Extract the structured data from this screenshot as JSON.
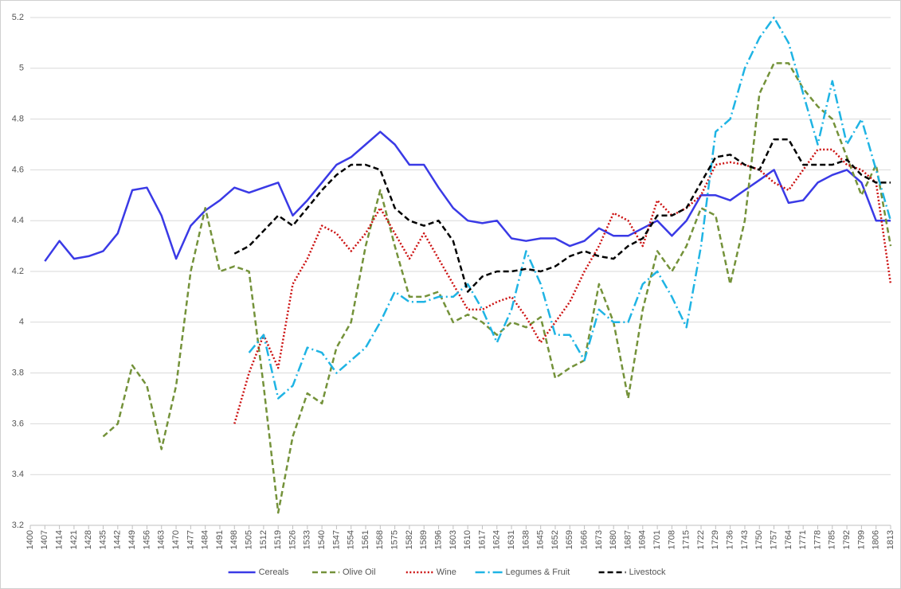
{
  "chart_data": {
    "type": "line",
    "x": [
      1400,
      1407,
      1414,
      1421,
      1428,
      1435,
      1442,
      1449,
      1456,
      1463,
      1470,
      1477,
      1484,
      1491,
      1498,
      1505,
      1512,
      1519,
      1526,
      1533,
      1540,
      1547,
      1554,
      1561,
      1568,
      1575,
      1582,
      1589,
      1596,
      1603,
      1610,
      1617,
      1624,
      1631,
      1638,
      1645,
      1652,
      1659,
      1666,
      1673,
      1680,
      1687,
      1694,
      1701,
      1708,
      1715,
      1722,
      1729,
      1736,
      1743,
      1750,
      1757,
      1764,
      1771,
      1778,
      1785,
      1792,
      1799,
      1806,
      1813
    ],
    "xlim": [
      1400,
      1813
    ],
    "xticks": [
      1400,
      1407,
      1414,
      1421,
      1428,
      1435,
      1442,
      1449,
      1456,
      1463,
      1470,
      1477,
      1484,
      1491,
      1498,
      1505,
      1512,
      1519,
      1526,
      1533,
      1540,
      1547,
      1554,
      1561,
      1568,
      1575,
      1582,
      1589,
      1596,
      1603,
      1610,
      1617,
      1624,
      1631,
      1638,
      1645,
      1652,
      1659,
      1666,
      1673,
      1680,
      1687,
      1694,
      1701,
      1708,
      1715,
      1722,
      1729,
      1736,
      1743,
      1750,
      1757,
      1764,
      1771,
      1778,
      1785,
      1792,
      1799,
      1806,
      1813
    ],
    "ylim": [
      3.2,
      5.2
    ],
    "yticks": [
      3.2,
      3.4,
      3.6,
      3.8,
      4,
      4.2,
      4.4,
      4.6,
      4.8,
      5,
      5.2
    ],
    "grid": true,
    "legend": "bottom",
    "series": [
      {
        "name": "Cereals",
        "color": "#3a3ae6",
        "dash": "solid",
        "values": [
          null,
          4.24,
          4.32,
          4.25,
          4.26,
          4.28,
          4.35,
          4.52,
          4.53,
          4.42,
          4.25,
          4.38,
          4.44,
          4.48,
          4.53,
          4.51,
          4.53,
          4.55,
          4.42,
          4.48,
          4.55,
          4.62,
          4.65,
          4.7,
          4.75,
          4.7,
          4.62,
          4.62,
          4.53,
          4.45,
          4.4,
          4.39,
          4.4,
          4.33,
          4.32,
          4.33,
          4.33,
          4.3,
          4.32,
          4.37,
          4.34,
          4.34,
          4.37,
          4.4,
          4.34,
          4.4,
          4.5,
          4.5,
          4.48,
          4.52,
          4.56,
          4.6,
          4.47,
          4.48,
          4.55,
          4.58,
          4.6,
          4.55,
          4.4,
          4.4
        ]
      },
      {
        "name": "Olive Oil",
        "color": "#74923a",
        "dash": "dashed",
        "values": [
          null,
          null,
          null,
          null,
          null,
          3.55,
          3.6,
          3.83,
          3.75,
          3.5,
          3.75,
          4.2,
          4.45,
          4.2,
          4.22,
          4.2,
          3.75,
          3.25,
          3.55,
          3.72,
          3.68,
          3.9,
          4.0,
          4.3,
          4.52,
          4.3,
          4.1,
          4.1,
          4.12,
          4.0,
          4.03,
          4.0,
          3.95,
          4.0,
          3.98,
          4.02,
          3.78,
          3.82,
          3.85,
          4.15,
          4.0,
          3.7,
          4.05,
          4.28,
          4.2,
          4.3,
          4.45,
          4.42,
          4.15,
          4.4,
          4.9,
          5.02,
          5.02,
          4.92,
          4.85,
          4.8,
          4.65,
          4.5,
          4.62,
          4.3
        ]
      },
      {
        "name": "Wine",
        "color": "#cc1111",
        "dash": "dotted",
        "values": [
          null,
          null,
          null,
          null,
          null,
          null,
          null,
          null,
          null,
          null,
          null,
          null,
          null,
          null,
          3.6,
          3.8,
          3.95,
          3.82,
          4.15,
          4.25,
          4.38,
          4.35,
          4.28,
          4.35,
          4.45,
          4.35,
          4.25,
          4.35,
          4.25,
          4.15,
          4.05,
          4.05,
          4.08,
          4.1,
          4.02,
          3.92,
          4.0,
          4.08,
          4.2,
          4.3,
          4.43,
          4.4,
          4.3,
          4.48,
          4.42,
          4.45,
          4.5,
          4.62,
          4.63,
          4.62,
          4.6,
          4.55,
          4.52,
          4.6,
          4.68,
          4.68,
          4.62,
          4.6,
          4.55,
          4.15
        ]
      },
      {
        "name": "Legumes & Fruit",
        "color": "#1fb4e4",
        "dash": "dashdot",
        "values": [
          null,
          null,
          null,
          null,
          null,
          null,
          null,
          null,
          null,
          null,
          null,
          null,
          null,
          null,
          null,
          3.88,
          3.95,
          3.7,
          3.75,
          3.9,
          3.88,
          3.8,
          3.85,
          3.9,
          4.0,
          4.12,
          4.08,
          4.08,
          4.1,
          4.1,
          4.15,
          4.05,
          3.92,
          4.05,
          4.28,
          4.15,
          3.95,
          3.95,
          3.85,
          4.05,
          4.0,
          4.0,
          4.15,
          4.2,
          4.1,
          3.98,
          4.3,
          4.75,
          4.8,
          5.0,
          5.12,
          5.2,
          5.1,
          4.9,
          4.7,
          4.95,
          4.7,
          4.8,
          4.6,
          4.4
        ]
      },
      {
        "name": "Livestock",
        "color": "#000000",
        "dash": "dashed",
        "values": [
          null,
          null,
          null,
          null,
          null,
          null,
          null,
          null,
          null,
          null,
          null,
          null,
          null,
          null,
          4.27,
          4.3,
          4.36,
          4.42,
          4.38,
          4.45,
          4.52,
          4.58,
          4.62,
          4.62,
          4.6,
          4.45,
          4.4,
          4.38,
          4.4,
          4.32,
          4.12,
          4.18,
          4.2,
          4.2,
          4.21,
          4.2,
          4.22,
          4.26,
          4.28,
          4.26,
          4.25,
          4.3,
          4.33,
          4.42,
          4.42,
          4.45,
          4.55,
          4.65,
          4.66,
          4.62,
          4.6,
          4.72,
          4.72,
          4.62,
          4.62,
          4.62,
          4.64,
          4.58,
          4.55,
          4.55
        ]
      }
    ]
  }
}
